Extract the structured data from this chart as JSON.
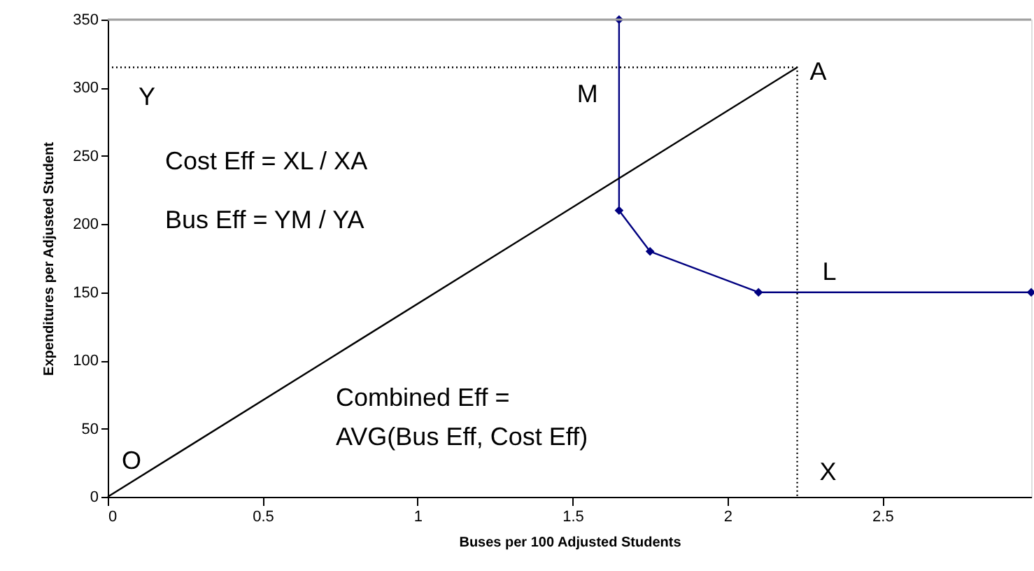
{
  "chart_data": {
    "type": "line",
    "xlabel": "Buses per 100 Adjusted Students",
    "ylabel": "Expenditures per Adjusted Student",
    "xlim": [
      0,
      2.98
    ],
    "xticks": [
      0,
      0.5,
      1,
      1.5,
      2,
      2.5
    ],
    "ylim": [
      0,
      350
    ],
    "yticks": [
      0,
      50,
      100,
      150,
      200,
      250,
      300,
      350
    ],
    "grid": false,
    "series": [
      {
        "color": "#000080",
        "marker": "diamond",
        "line_style": "solid",
        "x": [
          1.65,
          1.65,
          1.75,
          2.1,
          2.98
        ],
        "values": [
          350,
          210,
          180,
          150,
          150
        ]
      },
      {
        "color": "#000000",
        "marker": "none",
        "line_style": "solid",
        "x": [
          0,
          2.225
        ],
        "values": [
          0,
          315
        ]
      },
      {
        "color": "#000000",
        "marker": "none",
        "line_style": "dotted",
        "x": [
          0,
          2.225,
          2.225
        ],
        "values": [
          315,
          315,
          0
        ]
      }
    ],
    "ref_lines": [
      {
        "axis": "y",
        "value": 350,
        "label": null,
        "color": "#a0a0a0",
        "line_style": "solid"
      }
    ],
    "annotations": [
      {
        "text": "O",
        "x": 0,
        "y": 0
      },
      {
        "text": "Y",
        "x": 0,
        "y": 315
      },
      {
        "text": "M",
        "x": 1.65,
        "y": 315
      },
      {
        "text": "A",
        "x": 2.225,
        "y": 315
      },
      {
        "text": "L",
        "x": 2.225,
        "y": 150
      },
      {
        "text": "X",
        "x": 2.225,
        "y": 0
      },
      "Cost Eff = XL / XA",
      "Bus Eff = YM / YA",
      "Combined Eff =",
      "AVG(Bus Eff, Cost Eff)"
    ]
  }
}
